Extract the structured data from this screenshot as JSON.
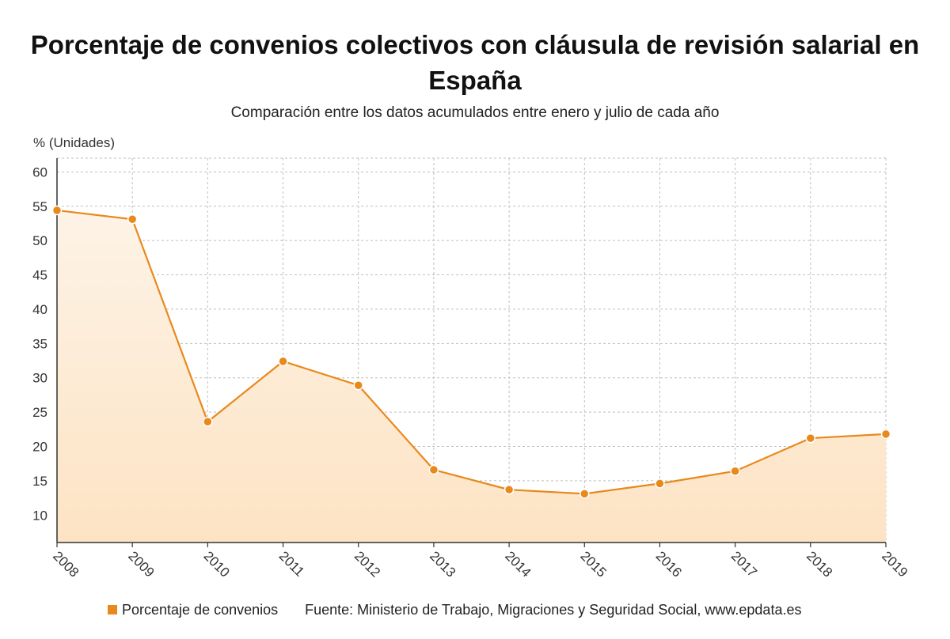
{
  "title": "Porcentaje de convenios colectivos con cláusula de revisión salarial en España",
  "subtitle": "Comparación entre los datos acumulados entre enero y julio de cada año",
  "legend": {
    "series_label": "Porcentaje de convenios",
    "source": "Fuente: Ministerio de Trabajo, Migraciones y Seguridad Social, www.epdata.es"
  },
  "colors": {
    "line": "#e8891c",
    "marker": "#e8891c",
    "area_top": "#fde3c4",
    "area_bottom": "#fdf3e6",
    "grid": "#bfbfbf"
  },
  "chart_data": {
    "type": "area",
    "ylabel": "% (Unidades)",
    "xlabel": "",
    "ylim": [
      6,
      62
    ],
    "yticks": [
      10,
      15,
      20,
      25,
      30,
      35,
      40,
      45,
      50,
      55,
      60
    ],
    "grid": true,
    "legend_position": "bottom",
    "categories": [
      "2008",
      "2009",
      "2010",
      "2011",
      "2012",
      "2013",
      "2014",
      "2015",
      "2016",
      "2017",
      "2018",
      "2019"
    ],
    "series": [
      {
        "name": "Porcentaje de convenios",
        "values": [
          54.4,
          53.1,
          23.6,
          32.4,
          28.9,
          16.6,
          13.7,
          13.1,
          14.6,
          16.4,
          21.2,
          21.8
        ]
      }
    ]
  }
}
